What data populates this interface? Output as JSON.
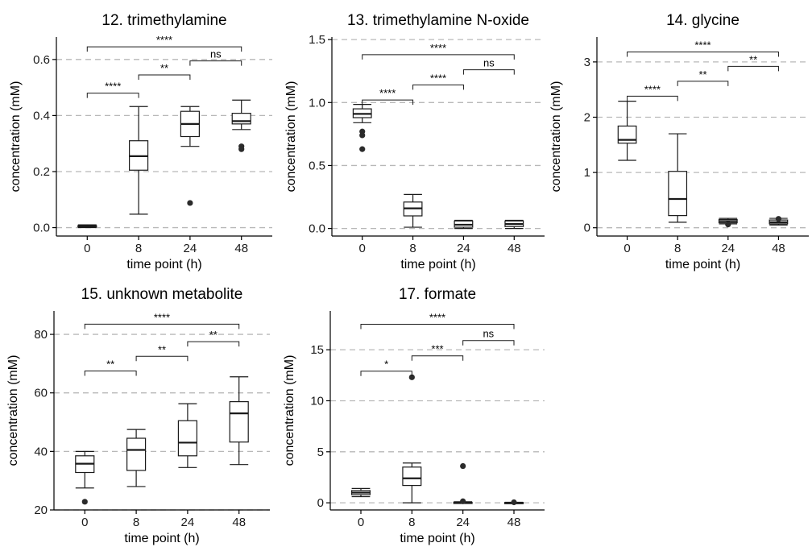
{
  "chart_data": [
    {
      "type": "box",
      "title": "12. trimethylamine",
      "xlabel": "time point (h)",
      "ylabel": "concentration (mM)",
      "categories": [
        "0",
        "8",
        "24",
        "48"
      ],
      "ylim": [
        -0.03,
        0.68
      ],
      "yticks": [
        0.0,
        0.2,
        0.4,
        0.6
      ],
      "ytick_labels": [
        "0.0",
        "0.2",
        "0.4",
        "0.6"
      ],
      "grid": "horizontal dashed",
      "boxes": [
        {
          "min": 0.0,
          "q1": 0.003,
          "median": 0.005,
          "q3": 0.007,
          "max": 0.01,
          "outliers": []
        },
        {
          "min": 0.048,
          "q1": 0.205,
          "median": 0.255,
          "q3": 0.31,
          "max": 0.432,
          "outliers": []
        },
        {
          "min": 0.29,
          "q1": 0.325,
          "median": 0.37,
          "q3": 0.415,
          "max": 0.432,
          "outliers": [
            0.088
          ]
        },
        {
          "min": 0.35,
          "q1": 0.37,
          "median": 0.38,
          "q3": 0.408,
          "max": 0.455,
          "outliers": [
            0.29,
            0.28
          ]
        }
      ],
      "comparisons": [
        {
          "from": 0,
          "to": 1,
          "y": 0.48,
          "label": "****"
        },
        {
          "from": 1,
          "to": 2,
          "y": 0.545,
          "label": "**"
        },
        {
          "from": 2,
          "to": 3,
          "y": 0.595,
          "label": "ns"
        },
        {
          "from": 0,
          "to": 3,
          "y": 0.645,
          "label": "****"
        }
      ]
    },
    {
      "type": "box",
      "title": "13. trimethylamine N-oxide",
      "xlabel": "time point (h)",
      "ylabel": "concentration (mM)",
      "categories": [
        "0",
        "8",
        "24",
        "48"
      ],
      "ylim": [
        -0.06,
        1.52
      ],
      "yticks": [
        0.0,
        0.5,
        1.0,
        1.5
      ],
      "ytick_labels": [
        "0.0",
        "0.5",
        "1.0",
        "1.5"
      ],
      "grid": "horizontal dashed",
      "boxes": [
        {
          "min": 0.84,
          "q1": 0.88,
          "median": 0.91,
          "q3": 0.95,
          "max": 0.985,
          "outliers": [
            0.77,
            0.74,
            0.63
          ]
        },
        {
          "min": 0.01,
          "q1": 0.1,
          "median": 0.16,
          "q3": 0.21,
          "max": 0.27,
          "outliers": []
        },
        {
          "min": 0.0,
          "q1": 0.01,
          "median": 0.03,
          "q3": 0.06,
          "max": 0.065,
          "outliers": []
        },
        {
          "min": 0.0,
          "q1": 0.015,
          "median": 0.035,
          "q3": 0.06,
          "max": 0.065,
          "outliers": []
        }
      ],
      "comparisons": [
        {
          "from": 0,
          "to": 1,
          "y": 1.02,
          "label": "****"
        },
        {
          "from": 1,
          "to": 2,
          "y": 1.14,
          "label": "****"
        },
        {
          "from": 2,
          "to": 3,
          "y": 1.26,
          "label": "ns"
        },
        {
          "from": 0,
          "to": 3,
          "y": 1.38,
          "label": "****"
        }
      ]
    },
    {
      "type": "box",
      "title": "14. glycine",
      "xlabel": "time point (h)",
      "ylabel": "concentration (mM)",
      "categories": [
        "0",
        "8",
        "24",
        "48"
      ],
      "ylim": [
        -0.15,
        3.45
      ],
      "yticks": [
        0,
        1,
        2,
        3
      ],
      "ytick_labels": [
        "0",
        "1",
        "2",
        "3"
      ],
      "grid": "horizontal dashed",
      "boxes": [
        {
          "min": 1.22,
          "q1": 1.53,
          "median": 1.59,
          "q3": 1.84,
          "max": 2.29,
          "outliers": []
        },
        {
          "min": 0.1,
          "q1": 0.22,
          "median": 0.52,
          "q3": 1.02,
          "max": 1.7,
          "outliers": []
        },
        {
          "min": 0.07,
          "q1": 0.09,
          "median": 0.12,
          "q3": 0.15,
          "max": 0.17,
          "outliers": [
            0.06
          ]
        },
        {
          "min": 0.05,
          "q1": 0.07,
          "median": 0.1,
          "q3": 0.14,
          "max": 0.17,
          "outliers": [
            0.16
          ]
        }
      ],
      "comparisons": [
        {
          "from": 0,
          "to": 1,
          "y": 2.38,
          "label": "****"
        },
        {
          "from": 1,
          "to": 2,
          "y": 2.65,
          "label": "**"
        },
        {
          "from": 2,
          "to": 3,
          "y": 2.92,
          "label": "**"
        },
        {
          "from": 0,
          "to": 3,
          "y": 3.18,
          "label": "****"
        }
      ]
    },
    {
      "type": "box",
      "title": "15. unknown metabolite",
      "xlabel": "time point (h)",
      "ylabel": "concentration (mM)",
      "categories": [
        "0",
        "8",
        "24",
        "48"
      ],
      "ylim": [
        20,
        88
      ],
      "yticks": [
        20,
        40,
        60,
        80
      ],
      "ytick_labels": [
        "20",
        "40",
        "60",
        "80"
      ],
      "grid": "horizontal dashed",
      "boxes": [
        {
          "min": 27.5,
          "q1": 32.8,
          "median": 35.8,
          "q3": 38.5,
          "max": 40.0,
          "outliers": [
            22.8
          ]
        },
        {
          "min": 28.0,
          "q1": 33.5,
          "median": 40.5,
          "q3": 44.5,
          "max": 47.5,
          "outliers": []
        },
        {
          "min": 34.5,
          "q1": 38.5,
          "median": 43.0,
          "q3": 50.5,
          "max": 56.3,
          "outliers": []
        },
        {
          "min": 35.5,
          "q1": 43.2,
          "median": 53.0,
          "q3": 57.0,
          "max": 65.5,
          "outliers": []
        }
      ],
      "comparisons": [
        {
          "from": 0,
          "to": 1,
          "y": 67.5,
          "label": "**"
        },
        {
          "from": 1,
          "to": 2,
          "y": 72.5,
          "label": "**"
        },
        {
          "from": 2,
          "to": 3,
          "y": 77.5,
          "label": "**"
        },
        {
          "from": 0,
          "to": 3,
          "y": 83.5,
          "label": "****"
        }
      ]
    },
    {
      "type": "box",
      "title": "17. formate",
      "xlabel": "time point (h)",
      "ylabel": "concentration (mM)",
      "categories": [
        "0",
        "8",
        "24",
        "48"
      ],
      "ylim": [
        -0.7,
        18.8
      ],
      "yticks": [
        0,
        5,
        10,
        15
      ],
      "ytick_labels": [
        "0",
        "5",
        "10",
        "15"
      ],
      "grid": "horizontal dashed",
      "boxes": [
        {
          "min": 0.6,
          "q1": 0.8,
          "median": 1.0,
          "q3": 1.2,
          "max": 1.4,
          "outliers": []
        },
        {
          "min": 0.0,
          "q1": 1.7,
          "median": 2.4,
          "q3": 3.5,
          "max": 3.9,
          "outliers": [
            12.3
          ]
        },
        {
          "min": 0.0,
          "q1": 0.0,
          "median": 0.0,
          "q3": 0.05,
          "max": 0.1,
          "outliers": [
            3.6,
            0.15
          ]
        },
        {
          "min": 0.0,
          "q1": 0.0,
          "median": 0.0,
          "q3": 0.03,
          "max": 0.05,
          "outliers": [
            0.05
          ]
        }
      ],
      "comparisons": [
        {
          "from": 0,
          "to": 1,
          "y": 12.9,
          "label": "*"
        },
        {
          "from": 1,
          "to": 2,
          "y": 14.4,
          "label": "***"
        },
        {
          "from": 2,
          "to": 3,
          "y": 15.9,
          "label": "ns"
        },
        {
          "from": 0,
          "to": 3,
          "y": 17.5,
          "label": "****"
        }
      ]
    }
  ]
}
